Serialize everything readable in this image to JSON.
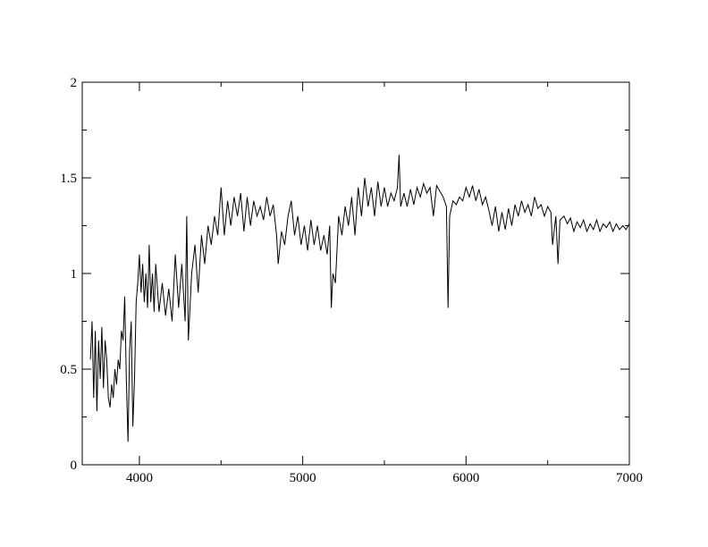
{
  "chart_data": {
    "type": "line",
    "title": "",
    "xlabel": "",
    "ylabel": "",
    "xlim": [
      3650,
      7000
    ],
    "ylim": [
      0,
      2
    ],
    "x_ticks": [
      4000,
      5000,
      6000,
      7000
    ],
    "x_tick_labels": [
      "4000",
      "5000",
      "6000",
      "7000"
    ],
    "x_minor_ticks": [
      4500,
      5500,
      6500
    ],
    "y_ticks": [
      0,
      0.5,
      1,
      1.5,
      2
    ],
    "y_tick_labels": [
      "0",
      "0.5",
      "1",
      "1.5",
      "2"
    ],
    "y_minor_ticks": [
      0.25,
      0.75,
      1.25,
      1.75
    ],
    "grid": false,
    "line_color": "#000000",
    "series": [
      {
        "x": [
          3700,
          3710,
          3720,
          3730,
          3740,
          3750,
          3760,
          3770,
          3780,
          3790,
          3800,
          3810,
          3820,
          3830,
          3840,
          3850,
          3860,
          3870,
          3880,
          3890,
          3900,
          3910,
          3920,
          3930,
          3940,
          3950,
          3960,
          3970,
          3980,
          3990,
          4000,
          4010,
          4020,
          4030,
          4040,
          4050,
          4060,
          4070,
          4080,
          4090,
          4100,
          4120,
          4140,
          4160,
          4180,
          4200,
          4220,
          4240,
          4260,
          4280,
          4290,
          4300,
          4320,
          4340,
          4360,
          4380,
          4400,
          4420,
          4440,
          4460,
          4480,
          4500,
          4520,
          4540,
          4560,
          4580,
          4600,
          4620,
          4640,
          4660,
          4680,
          4700,
          4720,
          4740,
          4760,
          4780,
          4800,
          4820,
          4840,
          4850,
          4870,
          4890,
          4910,
          4930,
          4950,
          4970,
          4990,
          5010,
          5030,
          5050,
          5070,
          5090,
          5110,
          5130,
          5150,
          5165,
          5175,
          5185,
          5200,
          5220,
          5240,
          5260,
          5280,
          5300,
          5320,
          5340,
          5360,
          5380,
          5400,
          5420,
          5440,
          5460,
          5480,
          5500,
          5520,
          5540,
          5560,
          5580,
          5590,
          5600,
          5620,
          5640,
          5660,
          5680,
          5700,
          5720,
          5740,
          5760,
          5780,
          5800,
          5820,
          5840,
          5860,
          5880,
          5890,
          5900,
          5920,
          5940,
          5960,
          5980,
          6000,
          6020,
          6040,
          6060,
          6080,
          6100,
          6120,
          6140,
          6160,
          6180,
          6200,
          6220,
          6240,
          6260,
          6280,
          6300,
          6320,
          6340,
          6360,
          6380,
          6400,
          6420,
          6440,
          6460,
          6480,
          6500,
          6520,
          6530,
          6550,
          6563,
          6575,
          6600,
          6620,
          6640,
          6660,
          6680,
          6700,
          6720,
          6740,
          6760,
          6780,
          6800,
          6820,
          6840,
          6860,
          6880,
          6900,
          6920,
          6940,
          6960,
          6980,
          7000
        ],
        "y": [
          0.55,
          0.75,
          0.35,
          0.7,
          0.28,
          0.65,
          0.45,
          0.72,
          0.4,
          0.65,
          0.55,
          0.35,
          0.3,
          0.42,
          0.35,
          0.5,
          0.42,
          0.55,
          0.5,
          0.7,
          0.65,
          0.88,
          0.45,
          0.12,
          0.6,
          0.75,
          0.2,
          0.45,
          0.85,
          0.95,
          1.1,
          0.9,
          1.05,
          0.85,
          1.0,
          0.82,
          1.15,
          0.85,
          1.0,
          0.8,
          1.05,
          0.8,
          0.95,
          0.78,
          0.92,
          0.75,
          1.1,
          0.82,
          1.05,
          0.75,
          1.3,
          0.65,
          1.0,
          1.15,
          0.9,
          1.2,
          1.05,
          1.25,
          1.15,
          1.3,
          1.2,
          1.45,
          1.2,
          1.38,
          1.25,
          1.4,
          1.3,
          1.42,
          1.22,
          1.4,
          1.25,
          1.38,
          1.3,
          1.35,
          1.28,
          1.4,
          1.3,
          1.36,
          1.2,
          1.05,
          1.22,
          1.15,
          1.3,
          1.38,
          1.2,
          1.3,
          1.15,
          1.25,
          1.12,
          1.28,
          1.15,
          1.25,
          1.12,
          1.2,
          1.1,
          1.25,
          0.82,
          1.0,
          0.95,
          1.3,
          1.2,
          1.35,
          1.25,
          1.4,
          1.2,
          1.45,
          1.3,
          1.5,
          1.35,
          1.45,
          1.3,
          1.48,
          1.35,
          1.45,
          1.35,
          1.42,
          1.38,
          1.45,
          1.62,
          1.35,
          1.42,
          1.35,
          1.44,
          1.36,
          1.45,
          1.4,
          1.47,
          1.42,
          1.45,
          1.3,
          1.46,
          1.43,
          1.4,
          1.35,
          0.82,
          1.3,
          1.38,
          1.36,
          1.4,
          1.38,
          1.45,
          1.4,
          1.46,
          1.38,
          1.44,
          1.36,
          1.4,
          1.33,
          1.25,
          1.35,
          1.22,
          1.32,
          1.23,
          1.34,
          1.25,
          1.36,
          1.3,
          1.38,
          1.32,
          1.36,
          1.3,
          1.4,
          1.34,
          1.36,
          1.3,
          1.35,
          1.32,
          1.15,
          1.3,
          1.05,
          1.28,
          1.3,
          1.26,
          1.29,
          1.22,
          1.27,
          1.24,
          1.28,
          1.22,
          1.26,
          1.23,
          1.28,
          1.22,
          1.26,
          1.24,
          1.27,
          1.22,
          1.26,
          1.23,
          1.25,
          1.23,
          1.26
        ]
      }
    ]
  }
}
